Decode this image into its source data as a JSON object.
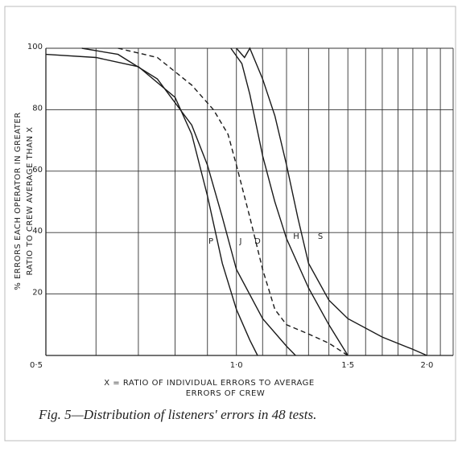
{
  "chart_data": {
    "type": "line",
    "caption": "Fig. 5—Distribution of listeners' errors in 48 tests.",
    "ylabel": [
      "% ERRORS EACH OPERATOR IN GREATER",
      "RATIO TO CREW AVERAGE THAN X"
    ],
    "xlabel": [
      "X = RATIO OF INDIVIDUAL ERRORS TO AVERAGE",
      "ERRORS OF CREW"
    ],
    "xscale": "log",
    "xlim": [
      0.5,
      2.2
    ],
    "xticks": [
      {
        "value": 0.5,
        "label": "0·5"
      },
      {
        "value": 1.0,
        "label": "1·0"
      },
      {
        "value": 1.5,
        "label": "1·5"
      },
      {
        "value": 2.0,
        "label": "2·0"
      }
    ],
    "x_minor_grid": [
      0.6,
      0.7,
      0.8,
      0.9,
      1.1,
      1.2,
      1.3,
      1.4,
      1.6,
      1.7,
      1.8,
      1.9,
      2.1,
      2.2
    ],
    "ylim": [
      0,
      100
    ],
    "yticks": [
      20,
      40,
      60,
      80,
      100
    ],
    "grid": true,
    "color": "#1a1a1a",
    "series": [
      {
        "name": "P",
        "style": "solid",
        "x": [
          0.5,
          0.6,
          0.7,
          0.8,
          0.85,
          0.9,
          0.95,
          1.0,
          1.05,
          1.08
        ],
        "y": [
          98,
          97,
          94,
          84,
          72,
          52,
          30,
          15,
          5,
          0
        ]
      },
      {
        "name": "J",
        "style": "solid",
        "x": [
          0.57,
          0.65,
          0.75,
          0.85,
          0.9,
          0.95,
          1.0,
          1.1,
          1.2,
          1.24
        ],
        "y": [
          100,
          98,
          90,
          75,
          62,
          45,
          28,
          12,
          3,
          0
        ]
      },
      {
        "name": "D",
        "style": "dashed",
        "x": [
          0.65,
          0.75,
          0.85,
          0.92,
          0.97,
          1.0,
          1.05,
          1.1,
          1.15,
          1.2,
          1.3,
          1.4,
          1.5
        ],
        "y": [
          100,
          97,
          88,
          80,
          72,
          62,
          45,
          28,
          15,
          10,
          7,
          4,
          0
        ]
      },
      {
        "name": "H",
        "style": "solid",
        "x": [
          0.98,
          1.02,
          1.05,
          1.1,
          1.15,
          1.2,
          1.3,
          1.4,
          1.5
        ],
        "y": [
          100,
          95,
          85,
          65,
          50,
          38,
          22,
          10,
          0
        ]
      },
      {
        "name": "S",
        "style": "solid",
        "x": [
          1.0,
          1.03,
          1.05,
          1.1,
          1.15,
          1.2,
          1.25,
          1.3,
          1.4,
          1.5,
          1.7,
          1.9,
          2.0
        ],
        "y": [
          100,
          97,
          100,
          90,
          78,
          62,
          45,
          30,
          18,
          12,
          6,
          2,
          0
        ]
      }
    ]
  }
}
